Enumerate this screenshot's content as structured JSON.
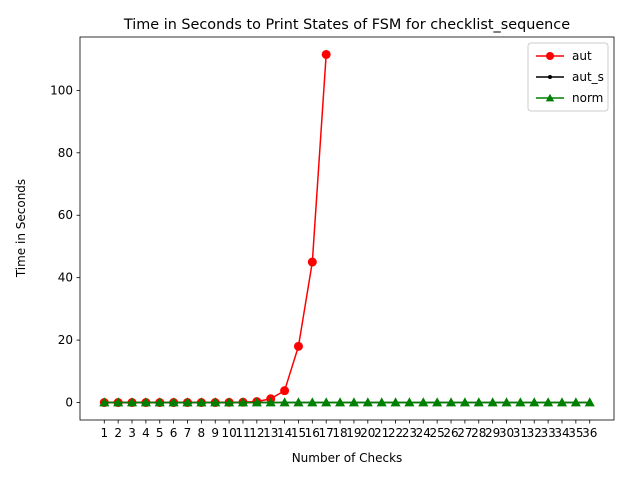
{
  "chart_data": {
    "type": "line",
    "title": "Time in Seconds to Print States of FSM for checklist_sequence",
    "xlabel": "Number of Checks",
    "ylabel": "Time in Seconds",
    "x": [
      1,
      2,
      3,
      4,
      5,
      6,
      7,
      8,
      9,
      10,
      11,
      12,
      13,
      14,
      15,
      16,
      17,
      18,
      19,
      20,
      21,
      22,
      23,
      24,
      25,
      26,
      27,
      28,
      29,
      30,
      31,
      32,
      33,
      34,
      35,
      36
    ],
    "xlim": [
      -0.75,
      37.75
    ],
    "ylim": [
      -5.6,
      117.1
    ],
    "yticks": [
      0,
      20,
      40,
      60,
      80,
      100
    ],
    "grid": false,
    "legend_position": "top-right",
    "series": [
      {
        "name": "aut",
        "color": "#ff0000",
        "marker": "circle",
        "x": [
          1,
          2,
          3,
          4,
          5,
          6,
          7,
          8,
          9,
          10,
          11,
          12,
          13,
          14,
          15,
          16,
          17
        ],
        "values": [
          0,
          0,
          0,
          0,
          0,
          0,
          0,
          0,
          0,
          0.05,
          0.1,
          0.3,
          1.2,
          3.8,
          18,
          45,
          111.5
        ]
      },
      {
        "name": "aut_s",
        "color": "#000000",
        "marker": "point",
        "x": [
          1,
          2,
          3,
          4,
          5,
          6,
          7,
          8,
          9,
          10,
          11,
          12,
          13,
          14,
          15,
          16,
          17,
          18,
          19,
          20,
          21,
          22,
          23,
          24,
          25,
          26,
          27,
          28,
          29,
          30,
          31,
          32,
          33,
          34,
          35,
          36
        ],
        "values": [
          0,
          0,
          0,
          0,
          0,
          0,
          0,
          0,
          0,
          0,
          0,
          0,
          0,
          0,
          0,
          0,
          0,
          0,
          0,
          0,
          0,
          0,
          0,
          0,
          0,
          0,
          0,
          0,
          0,
          0,
          0,
          0,
          0,
          0,
          0,
          0
        ]
      },
      {
        "name": "norm",
        "color": "#008000",
        "marker": "triangle",
        "x": [
          1,
          2,
          3,
          4,
          5,
          6,
          7,
          8,
          9,
          10,
          11,
          12,
          13,
          14,
          15,
          16,
          17,
          18,
          19,
          20,
          21,
          22,
          23,
          24,
          25,
          26,
          27,
          28,
          29,
          30,
          31,
          32,
          33,
          34,
          35,
          36
        ],
        "values": [
          0,
          0,
          0,
          0,
          0,
          0,
          0,
          0,
          0,
          0,
          0,
          0,
          0,
          0,
          0,
          0,
          0,
          0,
          0,
          0,
          0,
          0,
          0,
          0,
          0,
          0,
          0,
          0,
          0,
          0,
          0,
          0,
          0,
          0,
          0,
          0
        ]
      }
    ]
  }
}
